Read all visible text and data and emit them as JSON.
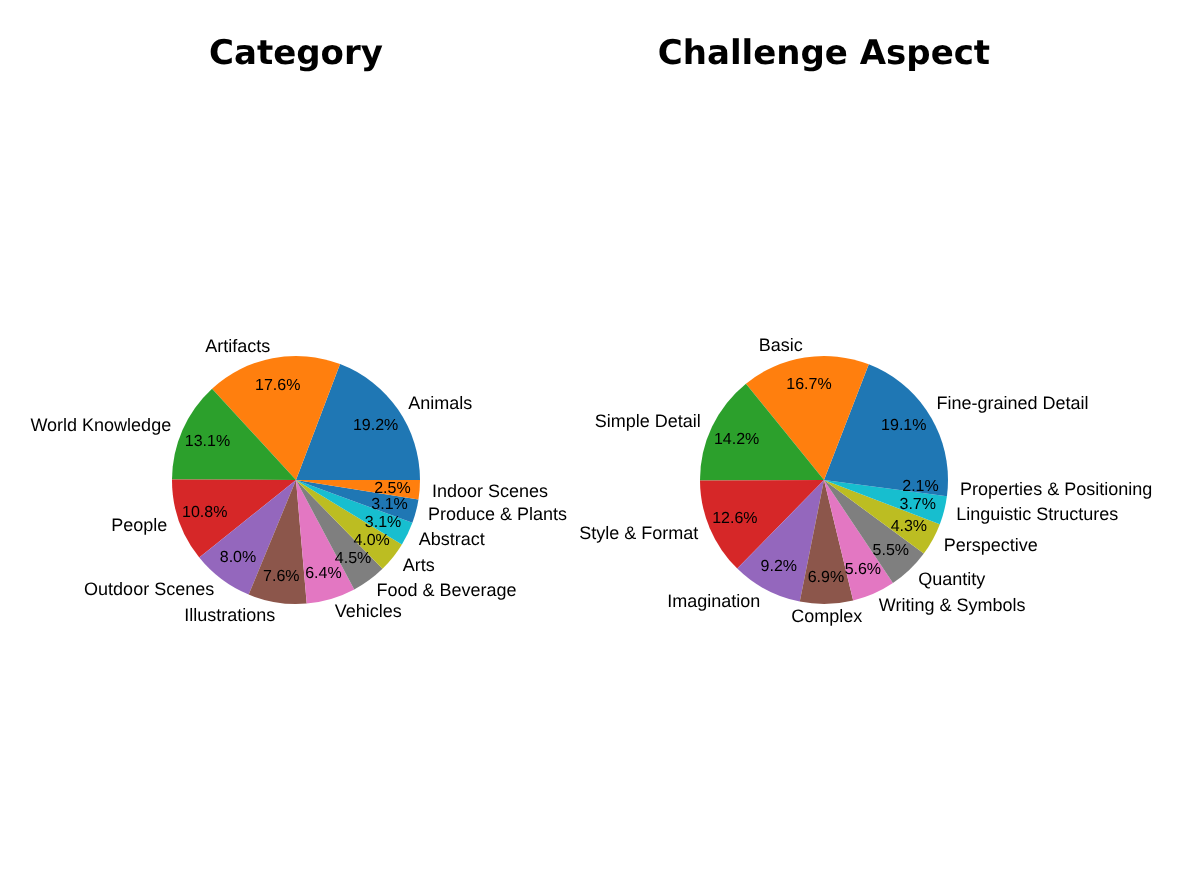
{
  "chart_data": [
    {
      "type": "pie",
      "title": "Category",
      "categories": [
        "Animals",
        "Artifacts",
        "World Knowledge",
        "People",
        "Outdoor Scenes",
        "Illustrations",
        "Vehicles",
        "Food & Beverage",
        "Arts",
        "Abstract",
        "Produce & Plants",
        "Indoor Scenes"
      ],
      "values": [
        19.2,
        17.6,
        13.1,
        10.8,
        8.0,
        7.6,
        6.4,
        4.5,
        4.0,
        3.1,
        3.1,
        2.5
      ],
      "value_labels": [
        "19.2%",
        "17.6%",
        "13.1%",
        "10.8%",
        "8.0%",
        "7.6%",
        "6.4%",
        "4.5%",
        "4.0%",
        "3.1%",
        "3.1%",
        "2.5%"
      ],
      "colors": [
        "#1f77b4",
        "#ff7f0e",
        "#2ca02c",
        "#d62728",
        "#9467bd",
        "#8c564b",
        "#e377c2",
        "#7f7f7f",
        "#bcbd22",
        "#17becf",
        "#1f77b4",
        "#ff7f0e"
      ]
    },
    {
      "type": "pie",
      "title": "Challenge Aspect",
      "categories": [
        "Fine-grained Detail",
        "Basic",
        "Simple Detail",
        "Style & Format",
        "Imagination",
        "Complex",
        "Writing & Symbols",
        "Quantity",
        "Perspective",
        "Linguistic Structures",
        "Properties & Positioning"
      ],
      "values": [
        19.1,
        16.7,
        14.2,
        12.6,
        9.2,
        6.9,
        5.6,
        5.5,
        4.3,
        3.7,
        2.1
      ],
      "value_labels": [
        "19.1%",
        "16.7%",
        "14.2%",
        "12.6%",
        "9.2%",
        "6.9%",
        "5.6%",
        "5.5%",
        "4.3%",
        "3.7%",
        "2.1%"
      ],
      "colors": [
        "#1f77b4",
        "#ff7f0e",
        "#2ca02c",
        "#d62728",
        "#9467bd",
        "#8c564b",
        "#e377c2",
        "#7f7f7f",
        "#bcbd22",
        "#17becf",
        "#1f77b4"
      ]
    }
  ]
}
